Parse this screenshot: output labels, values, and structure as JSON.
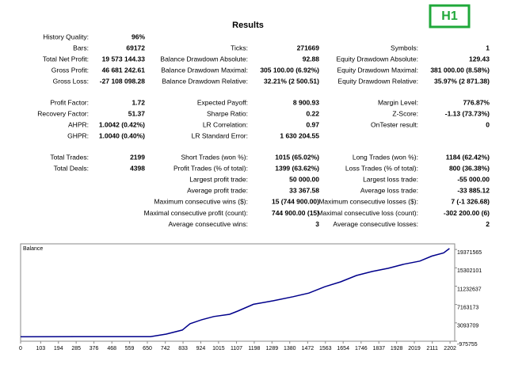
{
  "title": "Results",
  "badge": "H1",
  "sections": [
    {
      "rows": [
        {
          "left": {
            "label": "History Quality:",
            "value": "96%"
          }
        },
        {
          "left": {
            "label": "Bars:",
            "value": "69172"
          },
          "middle": {
            "label": "Ticks:",
            "value": "271669"
          },
          "right": {
            "label": "Symbols:",
            "value": "1"
          }
        },
        {
          "left": {
            "label": "Total Net Profit:",
            "value": "19 573 144.33"
          },
          "middle": {
            "label": "Balance Drawdown Absolute:",
            "value": "92.88"
          },
          "right": {
            "label": "Equity Drawdown Absolute:",
            "value": "129.43"
          }
        },
        {
          "left": {
            "label": "Gross Profit:",
            "value": "46 681 242.61"
          },
          "middle": {
            "label": "Balance Drawdown Maximal:",
            "value": "305 100.00 (6.92%)"
          },
          "right": {
            "label": "Equity Drawdown Maximal:",
            "value": "381 000.00 (8.58%)"
          }
        },
        {
          "left": {
            "label": "Gross Loss:",
            "value": "-27 108 098.28"
          },
          "middle": {
            "label": "Balance Drawdown Relative:",
            "value": "32.21% (2 500.51)"
          },
          "right": {
            "label": "Equity Drawdown Relative:",
            "value": "35.97% (2 871.38)"
          }
        }
      ]
    },
    {
      "rows": [
        {
          "left": {
            "label": "Profit Factor:",
            "value": "1.72"
          },
          "middle": {
            "label": "Expected Payoff:",
            "value": "8 900.93"
          },
          "right": {
            "label": "Margin Level:",
            "value": "776.87%"
          }
        },
        {
          "left": {
            "label": "Recovery Factor:",
            "value": "51.37"
          },
          "middle": {
            "label": "Sharpe Ratio:",
            "value": "0.22"
          },
          "right": {
            "label": "Z-Score:",
            "value": "-1.13 (73.73%)"
          }
        },
        {
          "left": {
            "label": "AHPR:",
            "value": "1.0042 (0.42%)"
          },
          "middle": {
            "label": "LR Correlation:",
            "value": "0.97"
          },
          "right": {
            "label": "OnTester result:",
            "value": "0"
          }
        },
        {
          "left": {
            "label": "GHPR:",
            "value": "1.0040 (0.40%)"
          },
          "middle": {
            "label": "LR Standard Error:",
            "value": "1 630 204.55"
          }
        }
      ]
    },
    {
      "rows": [
        {
          "left": {
            "label": "Total Trades:",
            "value": "2199"
          },
          "middle": {
            "label": "Short Trades (won %):",
            "value": "1015 (65.02%)"
          },
          "right": {
            "label": "Long Trades (won %):",
            "value": "1184 (62.42%)"
          }
        },
        {
          "left": {
            "label": "Total Deals:",
            "value": "4398"
          },
          "middle": {
            "label": "Profit Trades (% of total):",
            "value": "1399 (63.62%)"
          },
          "right": {
            "label": "Loss Trades (% of total):",
            "value": "800 (36.38%)"
          }
        },
        {
          "middle": {
            "label": "Largest profit trade:",
            "value": "50 000.00"
          },
          "right": {
            "label": "Largest loss trade:",
            "value": "-55 000.00"
          }
        },
        {
          "middle": {
            "label": "Average profit trade:",
            "value": "33 367.58"
          },
          "right": {
            "label": "Average loss trade:",
            "value": "-33 885.12"
          }
        },
        {
          "middle": {
            "label": "Maximum consecutive wins ($):",
            "value": "15 (744 900.00)"
          },
          "right": {
            "label": "Maximum consecutive losses ($):",
            "value": "7 (-1 326.68)"
          }
        },
        {
          "middle": {
            "label": "Maximal consecutive profit (count):",
            "value": "744 900.00 (15)"
          },
          "right": {
            "label": "Maximal consecutive loss (count):",
            "value": "-302 200.00 (6)"
          }
        },
        {
          "middle": {
            "label": "Average consecutive wins:",
            "value": "3"
          },
          "right": {
            "label": "Average consecutive losses:",
            "value": "2"
          }
        }
      ]
    }
  ],
  "chart_data": {
    "type": "line",
    "title": "Balance",
    "color": "#00008b",
    "x": [
      0,
      300,
      666,
      747,
      829,
      869,
      930,
      991,
      1072,
      1113,
      1194,
      1296,
      1397,
      1478,
      1560,
      1641,
      1722,
      1803,
      1885,
      1966,
      2047,
      2108,
      2169,
      2199
    ],
    "values": [
      10000,
      20000,
      50000,
      600000,
      1500000,
      2900000,
      3800000,
      4500000,
      5000000,
      5700000,
      7200000,
      8000000,
      8900000,
      9700000,
      11100000,
      12200000,
      13600000,
      14500000,
      15200000,
      16100000,
      16800000,
      17900000,
      18600000,
      19583144
    ],
    "xlim": [
      0,
      2226
    ],
    "ylim": [
      -975755,
      20620000
    ],
    "xticks": [
      0,
      103,
      194,
      285,
      376,
      468,
      559,
      650,
      742,
      833,
      924,
      1015,
      1107,
      1198,
      1289,
      1380,
      1472,
      1563,
      1654,
      1746,
      1837,
      1928,
      2019,
      2111,
      2202
    ],
    "yticks": [
      19371565,
      15302101,
      11232637,
      7163173,
      3093709,
      -975755
    ]
  }
}
